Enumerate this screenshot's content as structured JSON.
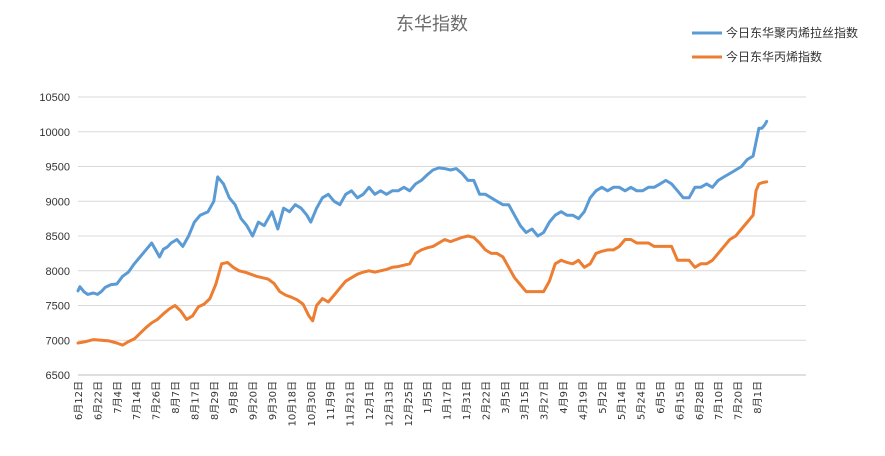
{
  "chart_data": {
    "type": "line",
    "title": "东华指数",
    "xlabel": "",
    "ylabel": "",
    "ylim": [
      6500,
      10500
    ],
    "yticks": [
      6500,
      7000,
      7500,
      8000,
      8500,
      9000,
      9500,
      10000,
      10500
    ],
    "grid": true,
    "legend_position": "top-right",
    "x_labels": [
      "6月12日",
      "6月22日",
      "7月4日",
      "7月14日",
      "7月26日",
      "8月7日",
      "8月17日",
      "8月29日",
      "9月8日",
      "9月20日",
      "9月30日",
      "10月18日",
      "10月30日",
      "11月9日",
      "11月21日",
      "12月1日",
      "12月13日",
      "12月25日",
      "1月5日",
      "1月17日",
      "1月31日",
      "2月22日",
      "3月5日",
      "3月15日",
      "3月27日",
      "4月9日",
      "4月19日",
      "5月2日",
      "5月14日",
      "5月24日",
      "6月5日",
      "6月15日",
      "6月28日",
      "7月10日",
      "7月20日",
      "8月1日"
    ],
    "series": [
      {
        "name": "今日东华聚丙烯拉丝指数",
        "color": "#5b9bd5",
        "points": [
          [
            0,
            7710
          ],
          [
            0.1,
            7770
          ],
          [
            0.3,
            7700
          ],
          [
            0.5,
            7660
          ],
          [
            0.8,
            7680
          ],
          [
            1.0,
            7660
          ],
          [
            1.2,
            7700
          ],
          [
            1.4,
            7760
          ],
          [
            1.7,
            7800
          ],
          [
            2.0,
            7810
          ],
          [
            2.3,
            7920
          ],
          [
            2.6,
            7980
          ],
          [
            2.9,
            8100
          ],
          [
            3.2,
            8200
          ],
          [
            3.5,
            8300
          ],
          [
            3.8,
            8400
          ],
          [
            4.0,
            8300
          ],
          [
            4.2,
            8200
          ],
          [
            4.4,
            8310
          ],
          [
            4.6,
            8340
          ],
          [
            4.8,
            8400
          ],
          [
            5.1,
            8450
          ],
          [
            5.4,
            8350
          ],
          [
            5.7,
            8500
          ],
          [
            6.0,
            8700
          ],
          [
            6.3,
            8800
          ],
          [
            6.7,
            8850
          ],
          [
            7.0,
            9000
          ],
          [
            7.2,
            9350
          ],
          [
            7.5,
            9250
          ],
          [
            7.8,
            9050
          ],
          [
            8.1,
            8950
          ],
          [
            8.4,
            8750
          ],
          [
            8.7,
            8650
          ],
          [
            9.0,
            8500
          ],
          [
            9.3,
            8700
          ],
          [
            9.6,
            8650
          ],
          [
            10.0,
            8850
          ],
          [
            10.3,
            8600
          ],
          [
            10.6,
            8900
          ],
          [
            10.9,
            8850
          ],
          [
            11.2,
            8950
          ],
          [
            11.5,
            8900
          ],
          [
            11.8,
            8800
          ],
          [
            12.0,
            8700
          ],
          [
            12.3,
            8900
          ],
          [
            12.6,
            9050
          ],
          [
            12.9,
            9100
          ],
          [
            13.2,
            9000
          ],
          [
            13.5,
            8950
          ],
          [
            13.8,
            9100
          ],
          [
            14.1,
            9150
          ],
          [
            14.4,
            9050
          ],
          [
            14.7,
            9100
          ],
          [
            15.0,
            9200
          ],
          [
            15.3,
            9100
          ],
          [
            15.6,
            9150
          ],
          [
            15.9,
            9100
          ],
          [
            16.2,
            9150
          ],
          [
            16.5,
            9150
          ],
          [
            16.8,
            9200
          ],
          [
            17.1,
            9150
          ],
          [
            17.4,
            9250
          ],
          [
            17.7,
            9300
          ],
          [
            18.0,
            9380
          ],
          [
            18.3,
            9450
          ],
          [
            18.6,
            9480
          ],
          [
            18.9,
            9470
          ],
          [
            19.2,
            9450
          ],
          [
            19.5,
            9470
          ],
          [
            19.8,
            9400
          ],
          [
            20.1,
            9300
          ],
          [
            20.4,
            9300
          ],
          [
            20.7,
            9100
          ],
          [
            21.0,
            9100
          ],
          [
            21.3,
            9050
          ],
          [
            21.6,
            9000
          ],
          [
            21.9,
            8950
          ],
          [
            22.2,
            8950
          ],
          [
            22.5,
            8800
          ],
          [
            22.8,
            8650
          ],
          [
            23.1,
            8550
          ],
          [
            23.4,
            8600
          ],
          [
            23.7,
            8500
          ],
          [
            24.0,
            8550
          ],
          [
            24.3,
            8700
          ],
          [
            24.6,
            8800
          ],
          [
            24.9,
            8850
          ],
          [
            25.2,
            8800
          ],
          [
            25.5,
            8800
          ],
          [
            25.8,
            8750
          ],
          [
            26.1,
            8850
          ],
          [
            26.4,
            9050
          ],
          [
            26.7,
            9150
          ],
          [
            27.0,
            9200
          ],
          [
            27.3,
            9150
          ],
          [
            27.6,
            9200
          ],
          [
            27.9,
            9200
          ],
          [
            28.2,
            9150
          ],
          [
            28.5,
            9200
          ],
          [
            28.8,
            9150
          ],
          [
            29.1,
            9150
          ],
          [
            29.4,
            9200
          ],
          [
            29.7,
            9200
          ],
          [
            30.0,
            9250
          ],
          [
            30.3,
            9300
          ],
          [
            30.6,
            9250
          ],
          [
            30.9,
            9150
          ],
          [
            31.2,
            9050
          ],
          [
            31.5,
            9050
          ],
          [
            31.8,
            9200
          ],
          [
            32.1,
            9200
          ],
          [
            32.4,
            9250
          ],
          [
            32.7,
            9200
          ],
          [
            33.0,
            9300
          ],
          [
            33.3,
            9350
          ],
          [
            33.6,
            9400
          ],
          [
            33.9,
            9450
          ],
          [
            34.2,
            9500
          ],
          [
            34.5,
            9600
          ],
          [
            34.8,
            9650
          ],
          [
            34.95,
            9850
          ],
          [
            35.1,
            10050
          ],
          [
            35.25,
            10050
          ],
          [
            35.4,
            10100
          ],
          [
            35.5,
            10150
          ]
        ]
      },
      {
        "name": "今日东华丙烯指数",
        "color": "#ed7d31",
        "points": [
          [
            0,
            6960
          ],
          [
            0.4,
            6980
          ],
          [
            0.8,
            7010
          ],
          [
            1.2,
            7000
          ],
          [
            1.6,
            6990
          ],
          [
            2.0,
            6960
          ],
          [
            2.3,
            6930
          ],
          [
            2.6,
            6980
          ],
          [
            2.9,
            7020
          ],
          [
            3.2,
            7100
          ],
          [
            3.5,
            7180
          ],
          [
            3.8,
            7250
          ],
          [
            4.1,
            7300
          ],
          [
            4.4,
            7380
          ],
          [
            4.7,
            7450
          ],
          [
            5.0,
            7500
          ],
          [
            5.3,
            7420
          ],
          [
            5.6,
            7300
          ],
          [
            5.9,
            7350
          ],
          [
            6.2,
            7480
          ],
          [
            6.5,
            7520
          ],
          [
            6.8,
            7600
          ],
          [
            7.1,
            7800
          ],
          [
            7.4,
            8100
          ],
          [
            7.7,
            8120
          ],
          [
            8.0,
            8050
          ],
          [
            8.3,
            8000
          ],
          [
            8.6,
            7980
          ],
          [
            8.9,
            7950
          ],
          [
            9.2,
            7920
          ],
          [
            9.5,
            7900
          ],
          [
            9.8,
            7880
          ],
          [
            10.1,
            7820
          ],
          [
            10.4,
            7700
          ],
          [
            10.7,
            7650
          ],
          [
            11.0,
            7620
          ],
          [
            11.3,
            7580
          ],
          [
            11.6,
            7520
          ],
          [
            11.9,
            7350
          ],
          [
            12.1,
            7280
          ],
          [
            12.3,
            7500
          ],
          [
            12.6,
            7600
          ],
          [
            12.9,
            7550
          ],
          [
            13.2,
            7650
          ],
          [
            13.5,
            7750
          ],
          [
            13.8,
            7850
          ],
          [
            14.1,
            7900
          ],
          [
            14.4,
            7950
          ],
          [
            14.7,
            7980
          ],
          [
            15.0,
            8000
          ],
          [
            15.3,
            7980
          ],
          [
            15.6,
            8000
          ],
          [
            15.9,
            8020
          ],
          [
            16.2,
            8050
          ],
          [
            16.5,
            8060
          ],
          [
            16.8,
            8080
          ],
          [
            17.1,
            8100
          ],
          [
            17.4,
            8250
          ],
          [
            17.7,
            8300
          ],
          [
            18.0,
            8330
          ],
          [
            18.3,
            8350
          ],
          [
            18.6,
            8400
          ],
          [
            18.9,
            8450
          ],
          [
            19.2,
            8420
          ],
          [
            19.5,
            8450
          ],
          [
            19.8,
            8480
          ],
          [
            20.1,
            8500
          ],
          [
            20.4,
            8480
          ],
          [
            20.7,
            8400
          ],
          [
            21.0,
            8300
          ],
          [
            21.3,
            8250
          ],
          [
            21.6,
            8250
          ],
          [
            21.9,
            8200
          ],
          [
            22.2,
            8050
          ],
          [
            22.5,
            7900
          ],
          [
            22.8,
            7800
          ],
          [
            23.1,
            7700
          ],
          [
            23.4,
            7700
          ],
          [
            23.7,
            7700
          ],
          [
            24.0,
            7700
          ],
          [
            24.3,
            7850
          ],
          [
            24.6,
            8100
          ],
          [
            24.9,
            8150
          ],
          [
            25.2,
            8120
          ],
          [
            25.5,
            8100
          ],
          [
            25.8,
            8150
          ],
          [
            26.1,
            8050
          ],
          [
            26.4,
            8100
          ],
          [
            26.7,
            8250
          ],
          [
            27.0,
            8280
          ],
          [
            27.3,
            8300
          ],
          [
            27.6,
            8300
          ],
          [
            27.9,
            8350
          ],
          [
            28.2,
            8450
          ],
          [
            28.5,
            8450
          ],
          [
            28.8,
            8400
          ],
          [
            29.1,
            8400
          ],
          [
            29.4,
            8400
          ],
          [
            29.7,
            8350
          ],
          [
            30.0,
            8350
          ],
          [
            30.3,
            8350
          ],
          [
            30.6,
            8350
          ],
          [
            30.9,
            8150
          ],
          [
            31.2,
            8150
          ],
          [
            31.5,
            8150
          ],
          [
            31.8,
            8050
          ],
          [
            32.1,
            8100
          ],
          [
            32.4,
            8100
          ],
          [
            32.7,
            8150
          ],
          [
            33.0,
            8250
          ],
          [
            33.3,
            8350
          ],
          [
            33.6,
            8450
          ],
          [
            33.9,
            8500
          ],
          [
            34.2,
            8600
          ],
          [
            34.5,
            8700
          ],
          [
            34.8,
            8800
          ],
          [
            34.95,
            9150
          ],
          [
            35.1,
            9250
          ],
          [
            35.3,
            9270
          ],
          [
            35.5,
            9280
          ]
        ]
      }
    ]
  }
}
